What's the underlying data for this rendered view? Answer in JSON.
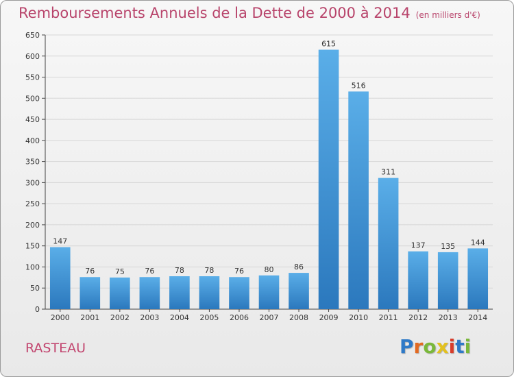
{
  "header": {
    "title": "Remboursements Annuels de la Dette de 2000 à 2014",
    "unit": "(en milliers d'€)"
  },
  "footer": {
    "commune": "RASTEAU",
    "logo_text": "Proxiti",
    "logo_letters": [
      "P",
      "r",
      "o",
      "x",
      "i",
      "t",
      "i"
    ],
    "logo_colors": [
      "#2e79c7",
      "#e36a21",
      "#7ab83a",
      "#e3c11f",
      "#d83c2b",
      "#2e79c7",
      "#7ab83a"
    ]
  },
  "chart_data": {
    "type": "bar",
    "title": "Remboursements Annuels de la Dette de 2000 à 2014",
    "xlabel": "",
    "ylabel": "",
    "categories": [
      "2000",
      "2001",
      "2002",
      "2003",
      "2004",
      "2005",
      "2006",
      "2007",
      "2008",
      "2009",
      "2010",
      "2011",
      "2012",
      "2013",
      "2014"
    ],
    "values": [
      147,
      76,
      75,
      76,
      78,
      78,
      76,
      80,
      86,
      615,
      516,
      311,
      137,
      135,
      144
    ],
    "ylim": [
      0,
      650
    ],
    "yticks": [
      0,
      50,
      100,
      150,
      200,
      250,
      300,
      350,
      400,
      450,
      500,
      550,
      600,
      650
    ],
    "grid": true,
    "bar_color": "#3a8fd4"
  }
}
